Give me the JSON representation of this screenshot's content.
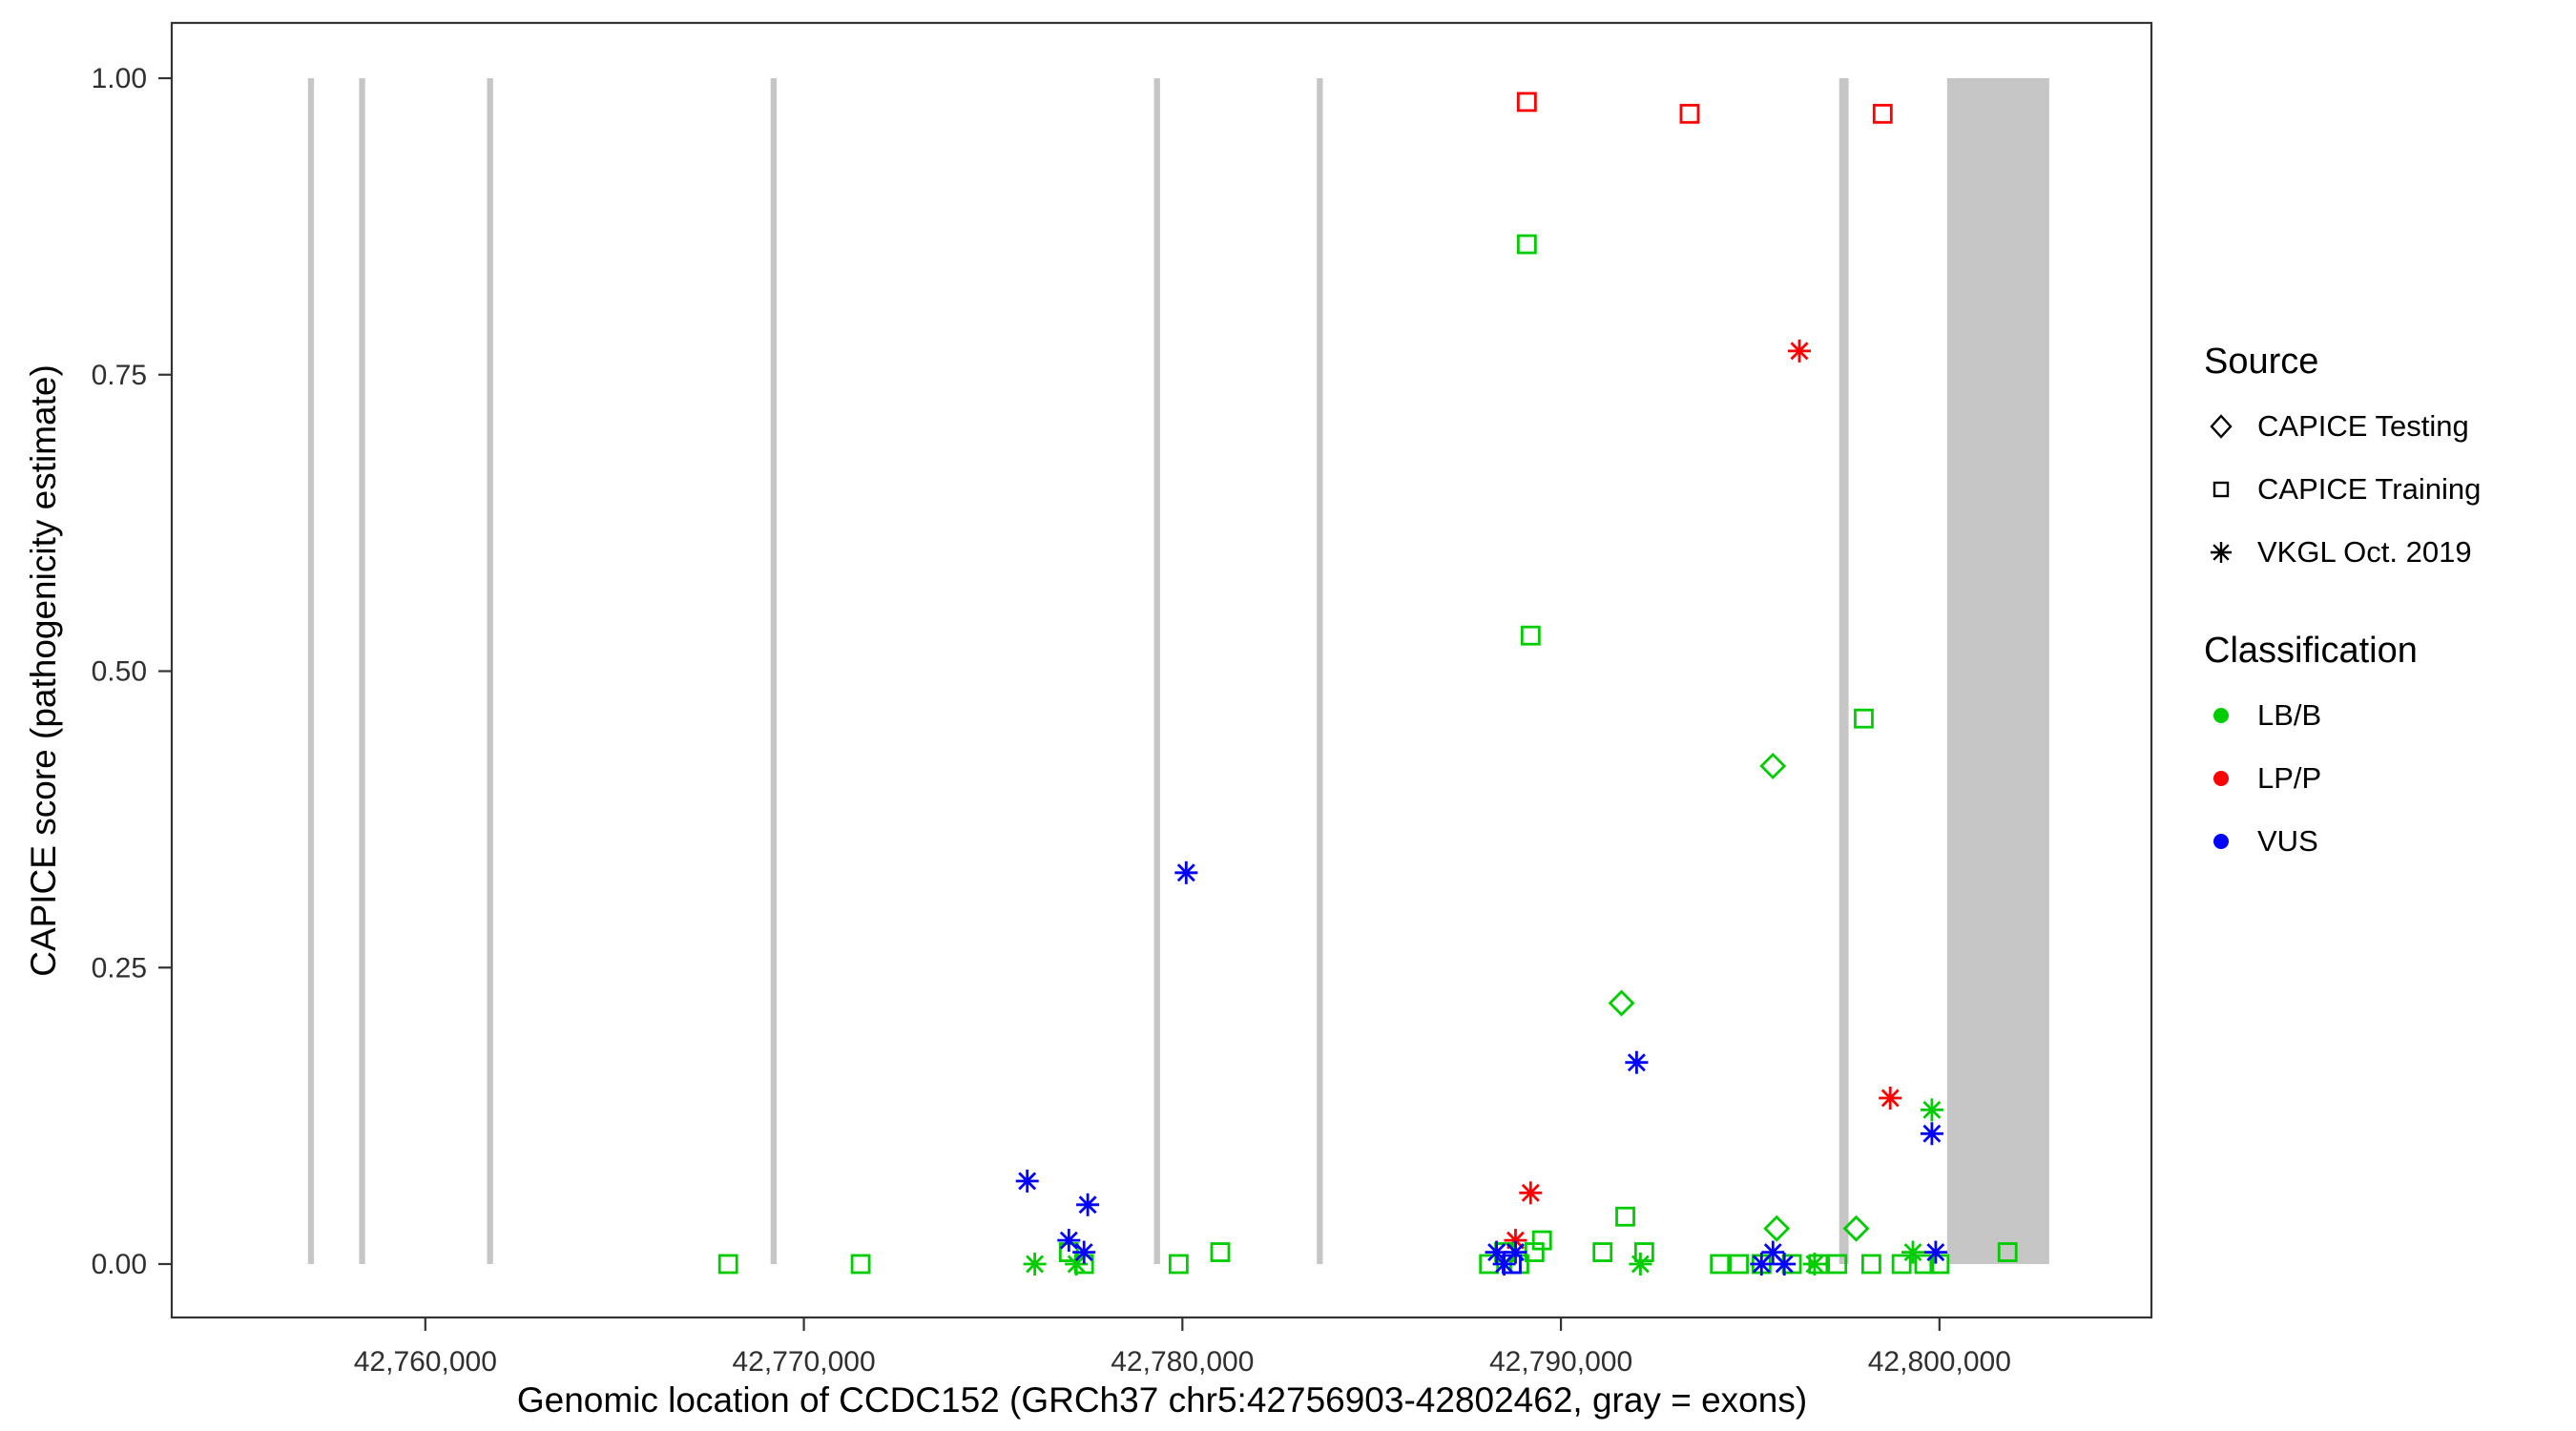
{
  "figure": {
    "xlabel": "Genomic location of CCDC152 (GRCh37 chr5:42756903-42802462, gray = exons)",
    "ylabel": "CAPICE score (pathogenicity estimate)"
  },
  "legend": {
    "source_title": "Source",
    "source_items": [
      {
        "label": "CAPICE Testing",
        "shape": "diamond"
      },
      {
        "label": "CAPICE Training",
        "shape": "square"
      },
      {
        "label": "VKGL Oct. 2019",
        "shape": "asterisk"
      }
    ],
    "classification_title": "Classification",
    "classification_items": [
      {
        "label": "LB/B",
        "color": "#00CC00"
      },
      {
        "label": "LP/P",
        "color": "#FF0000"
      },
      {
        "label": "VUS",
        "color": "#0000FF"
      }
    ]
  },
  "chart_data": {
    "type": "scatter",
    "title": "",
    "xlabel": "Genomic location of CCDC152 (GRCh37 chr5:42756903-42802462, gray = exons)",
    "ylabel": "CAPICE score (pathogenicity estimate)",
    "x_domain": [
      42753300,
      42805600
    ],
    "y_domain": [
      0,
      1
    ],
    "x_ticks": [
      {
        "value": 42760000,
        "label": "42,760,000"
      },
      {
        "value": 42770000,
        "label": "42,770,000"
      },
      {
        "value": 42780000,
        "label": "42,780,000"
      },
      {
        "value": 42790000,
        "label": "42,790,000"
      },
      {
        "value": 42800000,
        "label": "42,800,000"
      }
    ],
    "y_ticks": [
      {
        "value": 0,
        "label": "0.00"
      },
      {
        "value": 0.25,
        "label": "0.25"
      },
      {
        "value": 0.5,
        "label": "0.50"
      },
      {
        "value": 0.75,
        "label": "0.75"
      },
      {
        "value": 1,
        "label": "1.00"
      }
    ],
    "exon_color": "#C6C6C6",
    "exons": [
      [
        42756900,
        42757060
      ],
      [
        42758250,
        42758410
      ],
      [
        42761630,
        42761790
      ],
      [
        42769120,
        42769280
      ],
      [
        42779250,
        42779410
      ],
      [
        42783550,
        42783710
      ],
      [
        42797350,
        42797600
      ],
      [
        42800200,
        42802900
      ]
    ],
    "shape_by_source": {
      "CAPICE Testing": "diamond",
      "CAPICE Training": "square",
      "VKGL Oct. 2019": "asterisk"
    },
    "color_by_class": {
      "LB/B": "#00CC00",
      "LP/P": "#FF0000",
      "VUS": "#0000FF"
    },
    "series": [
      {
        "source": "CAPICE Training",
        "classification": "LP/P",
        "points": [
          [
            42789100,
            0.98
          ],
          [
            42793400,
            0.97
          ],
          [
            42798500,
            0.97
          ]
        ]
      },
      {
        "source": "VKGL Oct. 2019",
        "classification": "LP/P",
        "points": [
          [
            42796300,
            0.77
          ],
          [
            42798700,
            0.14
          ],
          [
            42789200,
            0.06
          ],
          [
            42788800,
            0.02
          ]
        ]
      },
      {
        "source": "CAPICE Training",
        "classification": "LB/B",
        "points": [
          [
            42789100,
            0.86
          ],
          [
            42789200,
            0.53
          ],
          [
            42798000,
            0.46
          ],
          [
            42768000,
            0.0
          ],
          [
            42771500,
            0.0
          ],
          [
            42777000,
            0.01
          ],
          [
            42777400,
            0.0
          ],
          [
            42779900,
            0.0
          ],
          [
            42781000,
            0.01
          ],
          [
            42788100,
            0.0
          ],
          [
            42788500,
            0.01
          ],
          [
            42788900,
            0.0
          ],
          [
            42789300,
            0.01
          ],
          [
            42789500,
            0.02
          ],
          [
            42791100,
            0.01
          ],
          [
            42791700,
            0.04
          ],
          [
            42792200,
            0.01
          ],
          [
            42794200,
            0.0
          ],
          [
            42794700,
            0.0
          ],
          [
            42795300,
            0.0
          ],
          [
            42796100,
            0.0
          ],
          [
            42796800,
            0.0
          ],
          [
            42797300,
            0.0
          ],
          [
            42798200,
            0.0
          ],
          [
            42799000,
            0.0
          ],
          [
            42799600,
            0.0
          ],
          [
            42800000,
            0.0
          ],
          [
            42801800,
            0.01
          ]
        ]
      },
      {
        "source": "CAPICE Testing",
        "classification": "LB/B",
        "points": [
          [
            42795600,
            0.42
          ],
          [
            42791600,
            0.22
          ],
          [
            42797800,
            0.03
          ],
          [
            42795700,
            0.03
          ]
        ]
      },
      {
        "source": "VKGL Oct. 2019",
        "classification": "LB/B",
        "points": [
          [
            42776100,
            0.0
          ],
          [
            42777200,
            0.0
          ],
          [
            42799800,
            0.13
          ],
          [
            42792100,
            0.0
          ],
          [
            42796700,
            0.0
          ],
          [
            42799300,
            0.01
          ]
        ]
      },
      {
        "source": "VKGL Oct. 2019",
        "classification": "VUS",
        "points": [
          [
            42780100,
            0.33
          ],
          [
            42775900,
            0.07
          ],
          [
            42777500,
            0.05
          ],
          [
            42777000,
            0.02
          ],
          [
            42777400,
            0.01
          ],
          [
            42792000,
            0.17
          ],
          [
            42799800,
            0.11
          ],
          [
            42788300,
            0.01
          ],
          [
            42788500,
            0.0
          ],
          [
            42788800,
            0.01
          ],
          [
            42795600,
            0.01
          ],
          [
            42795900,
            0.0
          ],
          [
            42795300,
            0.0
          ],
          [
            42799900,
            0.01
          ]
        ]
      },
      {
        "source": "CAPICE Training",
        "classification": "VUS",
        "points": [
          [
            42788700,
            0.0
          ]
        ]
      }
    ]
  }
}
